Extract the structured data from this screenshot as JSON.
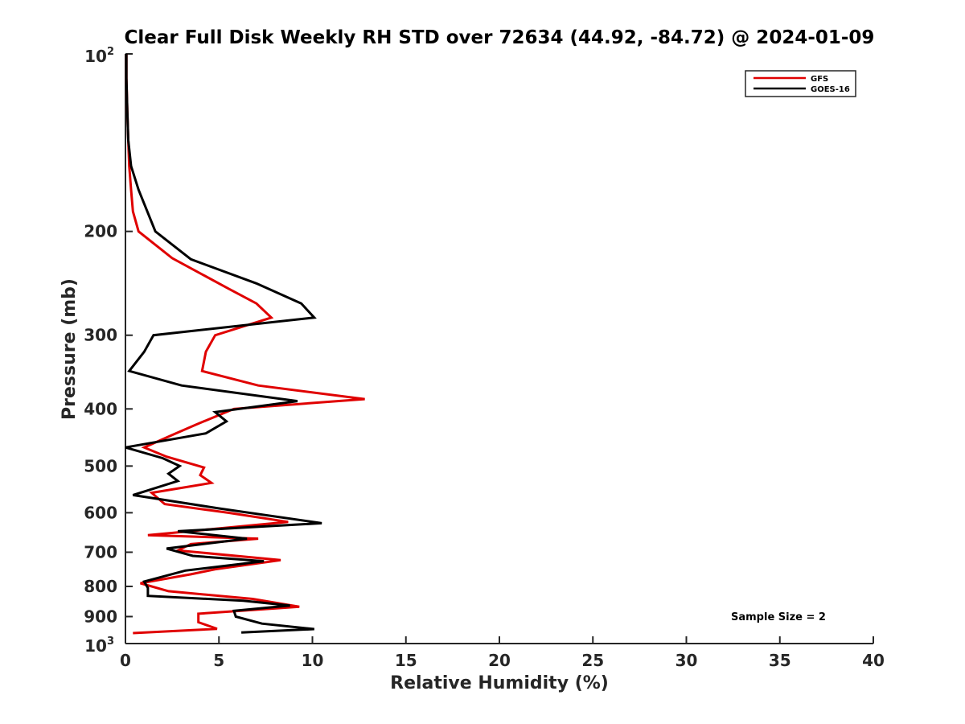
{
  "chart_data": {
    "type": "line",
    "title": "Clear Full Disk Weekly RH STD over 72634 (44.92, -84.72) @ 2024-01-09",
    "xlabel": "Relative Humidity (%)",
    "ylabel": "Pressure (mb)",
    "xlim": [
      0,
      40
    ],
    "ylim": [
      100,
      1000
    ],
    "yscale": "log",
    "y_reversed": true,
    "x_ticks": [
      0,
      5,
      10,
      15,
      20,
      25,
      30,
      35,
      40
    ],
    "x_tick_labels": [
      "0",
      "5",
      "10",
      "15",
      "20",
      "25",
      "30",
      "35",
      "40"
    ],
    "y_ticks": [
      200,
      300,
      400,
      500,
      600,
      700,
      800,
      900
    ],
    "y_tick_labels": [
      "200",
      "300",
      "400",
      "500",
      "600",
      "700",
      "800",
      "900"
    ],
    "y_top_label": {
      "base": "10",
      "exp": "2"
    },
    "y_bottom_label": {
      "base": "10",
      "exp": "3"
    },
    "legend_position": "top-right",
    "annotation": "Sample Size = 2",
    "series": [
      {
        "name": "GFS",
        "color": "#e00000",
        "points": [
          [
            0.05,
            100
          ],
          [
            0.05,
            110
          ],
          [
            0.1,
            125
          ],
          [
            0.15,
            140
          ],
          [
            0.2,
            155
          ],
          [
            0.3,
            170
          ],
          [
            0.4,
            185
          ],
          [
            0.7,
            200
          ],
          [
            2.5,
            222
          ],
          [
            5.5,
            250
          ],
          [
            7.0,
            265
          ],
          [
            7.8,
            280
          ],
          [
            4.8,
            300
          ],
          [
            4.3,
            320
          ],
          [
            4.1,
            345
          ],
          [
            7.1,
            365
          ],
          [
            12.8,
            385
          ],
          [
            5.8,
            400
          ],
          [
            3.8,
            425
          ],
          [
            2.5,
            443
          ],
          [
            1.0,
            465
          ],
          [
            2.2,
            482
          ],
          [
            4.2,
            503
          ],
          [
            4.0,
            518
          ],
          [
            4.6,
            534
          ],
          [
            1.4,
            555
          ],
          [
            2.1,
            580
          ],
          [
            5.5,
            600
          ],
          [
            8.7,
            622
          ],
          [
            1.2,
            655
          ],
          [
            7.1,
            664
          ],
          [
            3.5,
            678
          ],
          [
            2.8,
            695
          ],
          [
            8.3,
            722
          ],
          [
            4.8,
            748
          ],
          [
            3.5,
            763
          ],
          [
            0.8,
            790
          ],
          [
            2.3,
            815
          ],
          [
            6.8,
            840
          ],
          [
            9.3,
            866
          ],
          [
            3.9,
            890
          ],
          [
            3.9,
            920
          ],
          [
            4.9,
            944
          ],
          [
            0.4,
            960
          ]
        ]
      },
      {
        "name": "GOES-16",
        "color": "#000000",
        "points": [
          [
            0.05,
            100
          ],
          [
            0.05,
            110
          ],
          [
            0.1,
            125
          ],
          [
            0.15,
            140
          ],
          [
            0.3,
            155
          ],
          [
            0.7,
            170
          ],
          [
            1.6,
            200
          ],
          [
            3.5,
            223
          ],
          [
            7.0,
            245
          ],
          [
            9.4,
            265
          ],
          [
            10.1,
            280
          ],
          [
            1.5,
            300
          ],
          [
            1.0,
            320
          ],
          [
            0.2,
            345
          ],
          [
            3.0,
            365
          ],
          [
            9.2,
            388
          ],
          [
            4.8,
            405
          ],
          [
            5.4,
            420
          ],
          [
            4.3,
            440
          ],
          [
            0.0,
            465
          ],
          [
            2.0,
            485
          ],
          [
            2.9,
            500
          ],
          [
            2.3,
            515
          ],
          [
            2.8,
            530
          ],
          [
            0.4,
            560
          ],
          [
            5.0,
            590
          ],
          [
            10.5,
            625
          ],
          [
            2.8,
            645
          ],
          [
            6.5,
            664
          ],
          [
            2.2,
            690
          ],
          [
            3.6,
            710
          ],
          [
            7.4,
            725
          ],
          [
            3.2,
            752
          ],
          [
            1.0,
            785
          ],
          [
            1.2,
            805
          ],
          [
            1.2,
            830
          ],
          [
            6.3,
            846
          ],
          [
            8.8,
            862
          ],
          [
            5.8,
            880
          ],
          [
            5.9,
            900
          ],
          [
            7.3,
            925
          ],
          [
            10.1,
            945
          ],
          [
            6.2,
            958
          ]
        ]
      }
    ]
  }
}
